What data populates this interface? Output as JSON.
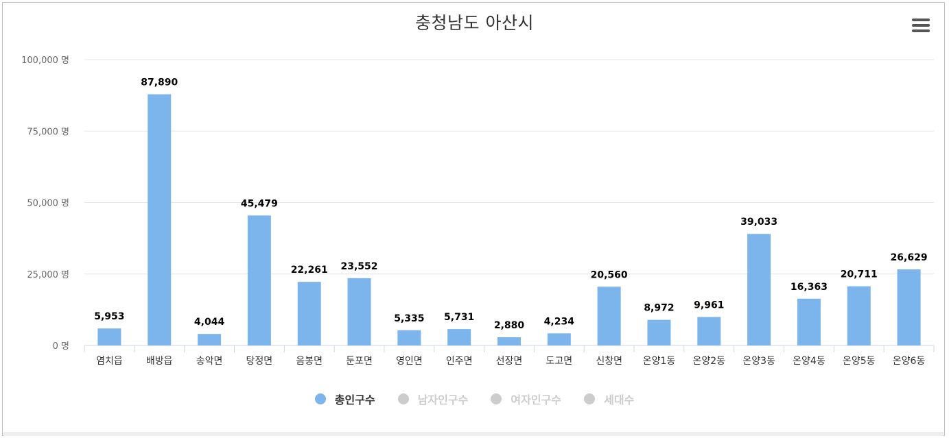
{
  "title": "충청남도 아산시",
  "menu_icon": "hamburger-menu-icon",
  "colors": {
    "bar": "#7cb5ec",
    "grid": "#e6e6e6",
    "inactive": "#cccccc"
  },
  "chart_data": {
    "type": "bar",
    "categories": [
      "염치읍",
      "배방읍",
      "송악면",
      "탕정면",
      "음봉면",
      "둔포면",
      "영인면",
      "인주면",
      "선장면",
      "도고면",
      "신창면",
      "온양1동",
      "온양2동",
      "온양3동",
      "온양4동",
      "온양5동",
      "온양6동"
    ],
    "series": [
      {
        "name": "총인구수",
        "values": [
          5953,
          87890,
          4044,
          45479,
          22261,
          23552,
          5335,
          5731,
          2880,
          4234,
          20560,
          8972,
          9961,
          39033,
          16363,
          20711,
          26629
        ]
      }
    ],
    "data_labels": [
      "5,953",
      "87,890",
      "4,044",
      "45,479",
      "22,261",
      "23,552",
      "5,335",
      "5,731",
      "2,880",
      "4,234",
      "20,560",
      "8,972",
      "9,961",
      "39,033",
      "16,363",
      "20,711",
      "26,629"
    ],
    "y_ticks": [
      0,
      25000,
      50000,
      75000,
      100000
    ],
    "y_tick_labels": [
      "0 명",
      "25,000 명",
      "50,000 명",
      "75,000 명",
      "100,000 명"
    ],
    "ylim": [
      0,
      100000
    ],
    "grid": true,
    "legend_position": "bottom-center"
  },
  "legend": [
    {
      "label": "총인구수",
      "active": true
    },
    {
      "label": "남자인구수",
      "active": false
    },
    {
      "label": "여자인구수",
      "active": false
    },
    {
      "label": "세대수",
      "active": false
    }
  ]
}
